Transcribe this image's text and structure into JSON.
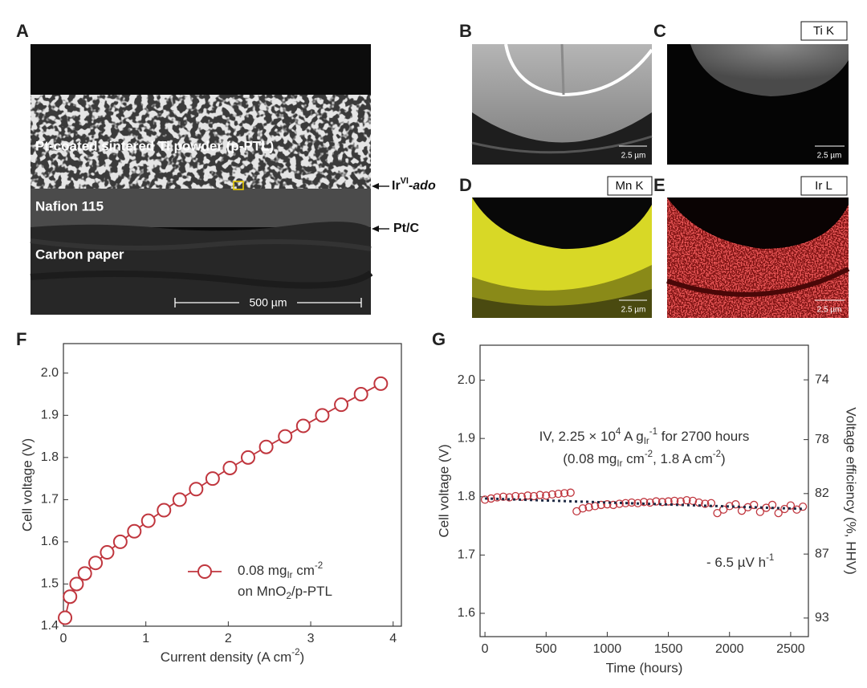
{
  "panel_labels": [
    "A",
    "B",
    "C",
    "D",
    "E",
    "F",
    "G"
  ],
  "micrograph": {
    "layer_labels": [
      "Pt-coated sintered Ti powder (p-PTL)",
      "Nafion 115",
      "Carbon paper"
    ],
    "scale_bar": "500 µm",
    "interface_labels": [
      [
        {
          "text": "Ir"
        },
        {
          "text": "VI",
          "shift": "sup"
        },
        {
          "text": "-ado",
          "style": "italic"
        }
      ],
      [
        {
          "text": "Pt/C"
        }
      ]
    ]
  },
  "maps": {
    "scale_bars": [
      "2.5 µm",
      "2.5 µm",
      "2.5 µm",
      "2.5 µm"
    ],
    "element_labels": [
      "Ti K",
      "Mn K",
      "Ir L"
    ]
  },
  "chart_data": [
    {
      "type": "line",
      "xlabel": [
        {
          "text": "Current density (A cm"
        },
        {
          "text": "-2",
          "shift": "sup"
        },
        {
          "text": ")"
        }
      ],
      "ylabel": "Cell voltage (V)",
      "xlim": [
        0,
        4.1
      ],
      "ylim": [
        1.4,
        2.07
      ],
      "xticks": [
        0,
        1,
        2,
        3,
        4
      ],
      "yticks": [
        1.4,
        1.5,
        1.6,
        1.7,
        1.8,
        1.9,
        {
          "value": 2,
          "label": "2.0"
        }
      ],
      "legend": "lower right",
      "series": [
        {
          "name": [
            [
              {
                "text": "0.08 mg"
              },
              {
                "text": "Ir",
                "shift": "sub"
              },
              {
                "text": " cm"
              },
              {
                "text": "-2",
                "shift": "sup"
              }
            ],
            [
              {
                "text": "on MnO"
              },
              {
                "text": "2",
                "shift": "sub"
              },
              {
                "text": "/p-PTL"
              }
            ]
          ],
          "color": "#c0363e",
          "x": [
            0.02,
            0.08,
            0.16,
            0.26,
            0.39,
            0.53,
            0.69,
            0.86,
            1.03,
            1.22,
            1.41,
            1.61,
            1.81,
            2.02,
            2.24,
            2.46,
            2.69,
            2.91,
            3.14,
            3.37,
            3.61,
            3.85
          ],
          "values": [
            1.42,
            1.47,
            1.5,
            1.525,
            1.55,
            1.575,
            1.6,
            1.625,
            1.65,
            1.675,
            1.7,
            1.725,
            1.75,
            1.775,
            1.8,
            1.825,
            1.85,
            1.875,
            1.9,
            1.925,
            1.95,
            1.975
          ]
        }
      ]
    },
    {
      "type": "scatter",
      "xlabel": "Time (hours)",
      "ylabel": "Cell voltage (V)",
      "y2label": "Voltage efficiency (%, HHV)",
      "xlim": [
        -40,
        2645
      ],
      "ylim": [
        1.56,
        2.06
      ],
      "xticks": [
        0,
        500,
        1000,
        1500,
        2000,
        2500
      ],
      "yticks": [
        1.6,
        1.7,
        1.8,
        1.9,
        {
          "value": 2,
          "label": "2.0"
        }
      ],
      "y2scale": "reciprocal",
      "y2lim": [
        94.9,
        71.9
      ],
      "y2ticks": [
        74,
        78,
        82,
        87,
        93
      ],
      "annotation": [
        [
          {
            "text": "IV, 2.25 × 10"
          },
          {
            "text": "4",
            "shift": "sup"
          },
          {
            "text": " A g"
          },
          {
            "text": "Ir",
            "shift": "sub"
          },
          {
            "text": "-1",
            "shift": "sup"
          },
          {
            "text": " for 2700 hours"
          }
        ],
        [
          {
            "text": "(0.08 mg"
          },
          {
            "text": "Ir",
            "shift": "sub"
          },
          {
            "text": " cm"
          },
          {
            "text": "-2",
            "shift": "sup"
          },
          {
            "text": ", 1.8 A cm"
          },
          {
            "text": "-2",
            "shift": "sup"
          },
          {
            "text": ")"
          }
        ]
      ],
      "series": [
        {
          "color": "#c0363e",
          "x": [
            0,
            50,
            100,
            150,
            200,
            250,
            300,
            350,
            400,
            450,
            500,
            550,
            600,
            650,
            700,
            750,
            800,
            850,
            900,
            950,
            1000,
            1050,
            1100,
            1150,
            1200,
            1250,
            1300,
            1350,
            1400,
            1450,
            1500,
            1550,
            1600,
            1650,
            1700,
            1750,
            1800,
            1850,
            1900,
            1950,
            2000,
            2050,
            2100,
            2150,
            2200,
            2250,
            2300,
            2350,
            2400,
            2450,
            2500,
            2550,
            2600
          ],
          "values": [
            1.795,
            1.797,
            1.799,
            1.8,
            1.799,
            1.801,
            1.8,
            1.802,
            1.801,
            1.803,
            1.802,
            1.804,
            1.805,
            1.806,
            1.807,
            1.775,
            1.78,
            1.782,
            1.784,
            1.786,
            1.787,
            1.786,
            1.788,
            1.789,
            1.79,
            1.789,
            1.791,
            1.79,
            1.792,
            1.791,
            1.792,
            1.793,
            1.792,
            1.794,
            1.793,
            1.79,
            1.788,
            1.789,
            1.772,
            1.778,
            1.784,
            1.787,
            1.776,
            1.782,
            1.786,
            1.774,
            1.781,
            1.786,
            1.772,
            1.779,
            1.785,
            1.778,
            1.783
          ]
        }
      ],
      "trend": {
        "color": "#1f2a44",
        "x": [
          0,
          2620
        ],
        "values": [
          1.797,
          1.779
        ],
        "label": [
          {
            "text": "- 6.5 µV h"
          },
          {
            "text": "-1",
            "shift": "sup"
          }
        ]
      }
    }
  ]
}
